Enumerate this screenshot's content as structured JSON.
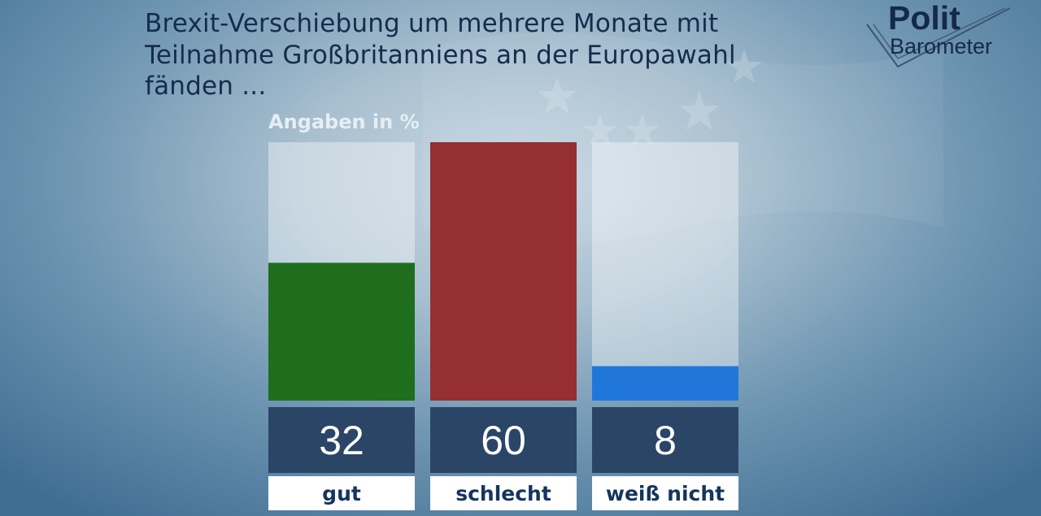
{
  "title": "Brexit-Verschiebung um mehrere Monate mit Teilnahme Großbritanniens an der Europawahl fänden ...",
  "title_lines": [
    "Brexit-Verschiebung um mehrere Monate mit",
    "Teilnahme Großbritanniens an der Europawahl",
    "fänden ..."
  ],
  "logo": {
    "line1": "Polit",
    "line2": "Barometer",
    "icon": "checkmark-icon"
  },
  "chart_data": {
    "type": "bar",
    "title": "Brexit-Verschiebung um mehrere Monate mit Teilnahme Großbritanniens an der Europawahl fänden ...",
    "unit_label": "Angaben in %",
    "categories": [
      "gut",
      "schlecht",
      "weiß nicht"
    ],
    "values": [
      32,
      60,
      8
    ],
    "colors": [
      "#1e6e1d",
      "#952f31",
      "#2177d9"
    ],
    "ylim": [
      0,
      60
    ],
    "grid": false,
    "legend": "none"
  }
}
